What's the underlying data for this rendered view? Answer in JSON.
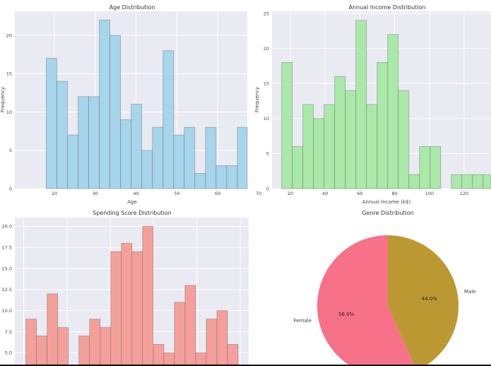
{
  "chart_data": [
    {
      "type": "bar",
      "title": "Age Distribution",
      "xlabel": "Age",
      "ylabel": "Frequency",
      "bins": {
        "start": 18,
        "end": 70,
        "count": 20
      },
      "values": [
        17,
        14,
        7,
        12,
        12,
        22,
        20,
        9,
        11,
        5,
        8,
        18,
        7,
        8,
        2,
        8,
        3,
        3,
        8,
        6
      ],
      "xticks": [
        "20",
        "30",
        "40",
        "50",
        "60",
        "70"
      ],
      "yticks": [
        "0",
        "5",
        "10",
        "15",
        "20"
      ],
      "xlim": [
        15.2,
        72.1
      ],
      "ylim": [
        0,
        23.1
      ],
      "grid": true,
      "color": "#a6d5ec"
    },
    {
      "type": "bar",
      "title": "Annual Income Distribution",
      "xlabel": "Annual Income (k$)",
      "ylabel": "Frequency",
      "bins": {
        "start": 15,
        "end": 137,
        "count": 20
      },
      "values": [
        18,
        6,
        12,
        10,
        12,
        16,
        14,
        24,
        12,
        18,
        22,
        14,
        2,
        6,
        6,
        0,
        2,
        2,
        2,
        2
      ],
      "xticks": [
        "20",
        "40",
        "60",
        "80",
        "100",
        "120"
      ],
      "yticks": [
        "0",
        "5",
        "10",
        "15",
        "20",
        "25"
      ],
      "xlim": [
        9.4,
        137
      ],
      "ylim": [
        0,
        25.3
      ],
      "grid": true,
      "color": "#aae9a9"
    },
    {
      "type": "bar",
      "title": "Spending Score Distribution",
      "bins": {
        "start": 1,
        "end": 99,
        "count": 20
      },
      "values": [
        9,
        7,
        12,
        8,
        0,
        7,
        9,
        8,
        17,
        18,
        17,
        20,
        6,
        5,
        11,
        13,
        5,
        9,
        10,
        6
      ],
      "yticks": [
        "5.0",
        "7.5",
        "10.0",
        "12.5",
        "15.0",
        "17.5",
        "20.0"
      ],
      "ylim": [
        0,
        21
      ],
      "grid": true,
      "color": "#f4a09a"
    },
    {
      "type": "pie",
      "title": "Genre Distribution",
      "labels": [
        "Female",
        "Male"
      ],
      "values": [
        56.0,
        44.0
      ],
      "pct_labels": [
        "56.0%",
        "44.0%"
      ],
      "colors": [
        "#f77189",
        "#bb9832"
      ]
    }
  ]
}
